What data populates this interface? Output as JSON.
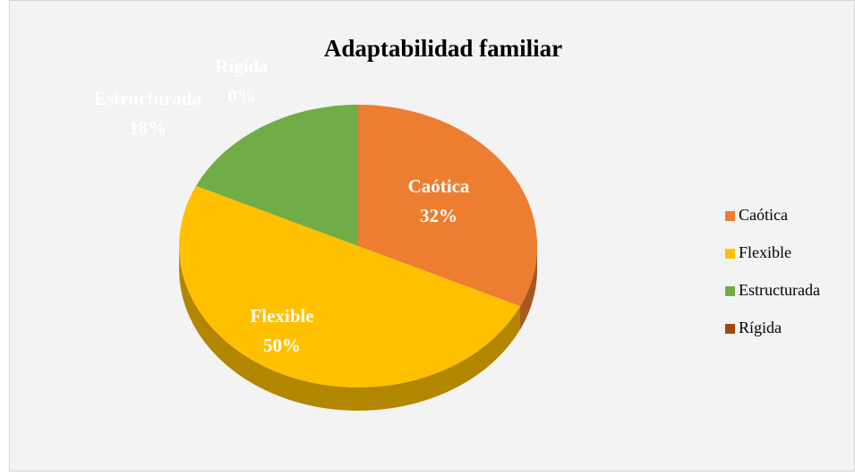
{
  "chart_data": {
    "type": "pie",
    "title": "Adaptabilidad  familiar",
    "categories": [
      "Caótica",
      "Flexible",
      "Estructurada",
      "Rígida"
    ],
    "values": [
      32,
      50,
      18,
      0
    ],
    "value_labels": [
      "32%",
      "50%",
      "18%",
      "0%"
    ],
    "colors": [
      "#ed7d31",
      "#ffc000",
      "#70ad47",
      "#9e480e"
    ],
    "legend": "right"
  }
}
